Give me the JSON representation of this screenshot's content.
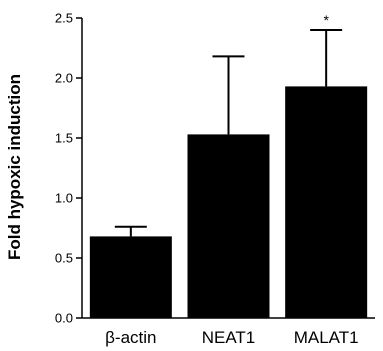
{
  "chart_data": {
    "type": "bar",
    "categories": [
      "β-actin",
      "NEAT1",
      "MALAT1"
    ],
    "values": [
      0.68,
      1.53,
      1.93
    ],
    "errors": [
      0.08,
      0.65,
      0.47
    ],
    "annotations": [
      "",
      "",
      "*"
    ],
    "ylabel": "Fold hypoxic induction",
    "xlabel": "",
    "ylim": [
      0.0,
      2.5
    ],
    "yticks": [
      0.0,
      0.5,
      1.0,
      1.5,
      2.0,
      2.5
    ],
    "ytick_labels": [
      "0.0",
      "0.5",
      "1.0",
      "1.5",
      "2.0",
      "2.5"
    ],
    "grid": false,
    "bar_color": "#000000"
  }
}
